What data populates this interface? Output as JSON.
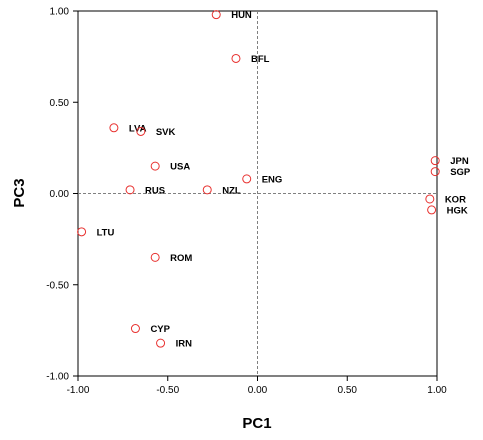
{
  "chart_data": {
    "type": "scatter",
    "title": "",
    "xlabel": "PC1",
    "ylabel": "PC3",
    "xlim": [
      -1.0,
      1.0
    ],
    "ylim": [
      -1.0,
      1.0
    ],
    "xticks": [
      -1.0,
      -0.5,
      0.0,
      0.5,
      1.0
    ],
    "yticks": [
      -1.0,
      -0.5,
      0.0,
      0.5,
      1.0
    ],
    "xtick_labels": [
      "-1.00",
      "-0.50",
      "0.00",
      "0.50",
      "1.00"
    ],
    "ytick_labels": [
      "-1.00",
      "-0.50",
      "0.00",
      "0.50",
      "1.00"
    ],
    "reference_lines": {
      "x": 0.0,
      "y": 0.0,
      "style": "dashed"
    },
    "marker_color": "#e8312f",
    "grid": false,
    "points": [
      {
        "label": "HUN",
        "x": -0.23,
        "y": 0.98
      },
      {
        "label": "BFL",
        "x": -0.12,
        "y": 0.74
      },
      {
        "label": "LVA",
        "x": -0.8,
        "y": 0.36
      },
      {
        "label": "SVK",
        "x": -0.65,
        "y": 0.34
      },
      {
        "label": "USA",
        "x": -0.57,
        "y": 0.15
      },
      {
        "label": "ENG",
        "x": -0.06,
        "y": 0.08
      },
      {
        "label": "RUS",
        "x": -0.71,
        "y": 0.02
      },
      {
        "label": "NZL",
        "x": -0.28,
        "y": 0.02
      },
      {
        "label": "JPN",
        "x": 0.99,
        "y": 0.18
      },
      {
        "label": "SGP",
        "x": 0.99,
        "y": 0.12
      },
      {
        "label": "KOR",
        "x": 0.96,
        "y": -0.03
      },
      {
        "label": "HGK",
        "x": 0.97,
        "y": -0.09
      },
      {
        "label": "LTU",
        "x": -0.98,
        "y": -0.21
      },
      {
        "label": "ROM",
        "x": -0.57,
        "y": -0.35
      },
      {
        "label": "CYP",
        "x": -0.68,
        "y": -0.74
      },
      {
        "label": "IRN",
        "x": -0.54,
        "y": -0.82
      }
    ]
  }
}
